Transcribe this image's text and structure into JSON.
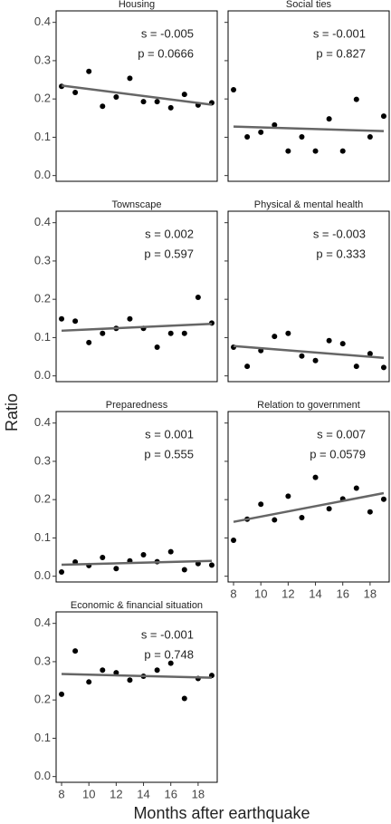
{
  "chart_data": [
    {
      "type": "scatter",
      "title": "Housing",
      "annotations": [
        "s = -0.005",
        "p = 0.0666"
      ],
      "color": "#000000",
      "fit_color": "#666666",
      "x": [
        8,
        9,
        10,
        11,
        12,
        13,
        14,
        15,
        16,
        17,
        18,
        19
      ],
      "values": [
        0.233,
        0.217,
        0.272,
        0.181,
        0.205,
        0.254,
        0.193,
        0.193,
        0.177,
        0.212,
        0.184,
        0.19
      ],
      "fit_x": [
        8,
        19
      ],
      "fit_values": [
        0.235,
        0.185
      ],
      "xlim": [
        7.6,
        19.4
      ],
      "ylim": [
        -0.015,
        0.43
      ],
      "yticks": [
        {
          "value": 0,
          "label": "0.0"
        },
        0.1,
        0.2,
        0.3,
        0.4
      ]
    },
    {
      "type": "scatter",
      "title": "Social ties",
      "annotations": [
        "s = -0.001",
        "p = 0.827"
      ],
      "color": "#000000",
      "fit_color": "#666666",
      "x": [
        8,
        9,
        10,
        11,
        12,
        13,
        14,
        15,
        16,
        17,
        18,
        19
      ],
      "values": [
        0.224,
        0.101,
        0.113,
        0.132,
        0.064,
        0.101,
        0.064,
        0.148,
        0.064,
        0.199,
        0.101,
        0.155
      ],
      "fit_x": [
        8,
        19
      ],
      "fit_values": [
        0.128,
        0.116
      ],
      "xlim": [
        7.6,
        19.4
      ],
      "ylim": [
        -0.015,
        0.43
      ]
    },
    {
      "type": "scatter",
      "title": "Townscape",
      "annotations": [
        "s = 0.002",
        "p = 0.597"
      ],
      "color": "#000000",
      "fit_color": "#666666",
      "x": [
        8,
        9,
        10,
        11,
        12,
        13,
        14,
        15,
        16,
        17,
        18,
        19
      ],
      "values": [
        0.149,
        0.143,
        0.087,
        0.111,
        0.124,
        0.149,
        0.124,
        0.075,
        0.111,
        0.111,
        0.205,
        0.138
      ],
      "fit_x": [
        8,
        19
      ],
      "fit_values": [
        0.118,
        0.136
      ],
      "xlim": [
        7.6,
        19.4
      ],
      "ylim": [
        -0.015,
        0.43
      ],
      "yticks": [
        {
          "value": 0,
          "label": "0.0"
        },
        0.1,
        0.2,
        0.3,
        0.4
      ]
    },
    {
      "type": "scatter",
      "title": "Physical & mental health",
      "annotations": [
        "s = -0.003",
        "p = 0.333"
      ],
      "color": "#000000",
      "fit_color": "#666666",
      "x": [
        8,
        9,
        10,
        11,
        12,
        13,
        14,
        15,
        16,
        17,
        18,
        19
      ],
      "values": [
        0.075,
        0.025,
        0.066,
        0.103,
        0.111,
        0.052,
        0.04,
        0.092,
        0.084,
        0.025,
        0.058,
        0.022
      ],
      "fit_x": [
        8,
        19
      ],
      "fit_values": [
        0.078,
        0.047
      ],
      "xlim": [
        7.6,
        19.4
      ],
      "ylim": [
        -0.015,
        0.43
      ]
    },
    {
      "type": "scatter",
      "title": "Preparedness",
      "annotations": [
        "s = 0.001",
        "p = 0.555"
      ],
      "color": "#000000",
      "fit_color": "#666666",
      "x": [
        8,
        9,
        10,
        11,
        12,
        13,
        14,
        15,
        16,
        17,
        18,
        19
      ],
      "values": [
        0.011,
        0.037,
        0.028,
        0.049,
        0.02,
        0.04,
        0.056,
        0.038,
        0.064,
        0.017,
        0.033,
        0.029
      ],
      "fit_x": [
        8,
        19
      ],
      "fit_values": [
        0.03,
        0.04
      ],
      "xlim": [
        7.6,
        19.4
      ],
      "ylim": [
        -0.015,
        0.43
      ],
      "yticks": [
        {
          "value": 0,
          "label": "0.0"
        },
        0.1,
        0.2,
        0.3,
        0.4
      ]
    },
    {
      "type": "scatter",
      "title": "Relation to government",
      "annotations": [
        "s = 0.007",
        "p = 0.0579"
      ],
      "color": "#000000",
      "fit_color": "#666666",
      "x": [
        8,
        9,
        10,
        11,
        12,
        13,
        14,
        15,
        16,
        17,
        18,
        19
      ],
      "values": [
        0.094,
        0.149,
        0.188,
        0.147,
        0.209,
        0.153,
        0.258,
        0.176,
        0.202,
        0.23,
        0.168,
        0.201
      ],
      "fit_x": [
        8,
        19
      ],
      "fit_values": [
        0.142,
        0.217
      ],
      "xlim": [
        7.6,
        19.4
      ],
      "ylim": [
        -0.015,
        0.43
      ],
      "xticks": [
        8,
        10,
        12,
        14,
        16,
        18
      ]
    },
    {
      "type": "scatter",
      "title": "Economic & financial situation",
      "annotations": [
        "s = -0.001",
        "p = 0.748"
      ],
      "color": "#000000",
      "fit_color": "#666666",
      "x": [
        8,
        9,
        10,
        11,
        12,
        13,
        14,
        15,
        16,
        17,
        18,
        19
      ],
      "values": [
        0.215,
        0.328,
        0.247,
        0.278,
        0.271,
        0.252,
        0.262,
        0.278,
        0.296,
        0.204,
        0.256,
        0.264
      ],
      "fit_x": [
        8,
        19
      ],
      "fit_values": [
        0.268,
        0.258
      ],
      "xlim": [
        7.6,
        19.4
      ],
      "ylim": [
        -0.015,
        0.43
      ],
      "yticks": [
        {
          "value": 0,
          "label": "0.0"
        },
        0.1,
        0.2,
        0.3,
        0.4
      ],
      "xticks": [
        8,
        10,
        12,
        14,
        16,
        18
      ]
    }
  ],
  "y_label": "Ratio",
  "x_label": "Months after earthquake"
}
